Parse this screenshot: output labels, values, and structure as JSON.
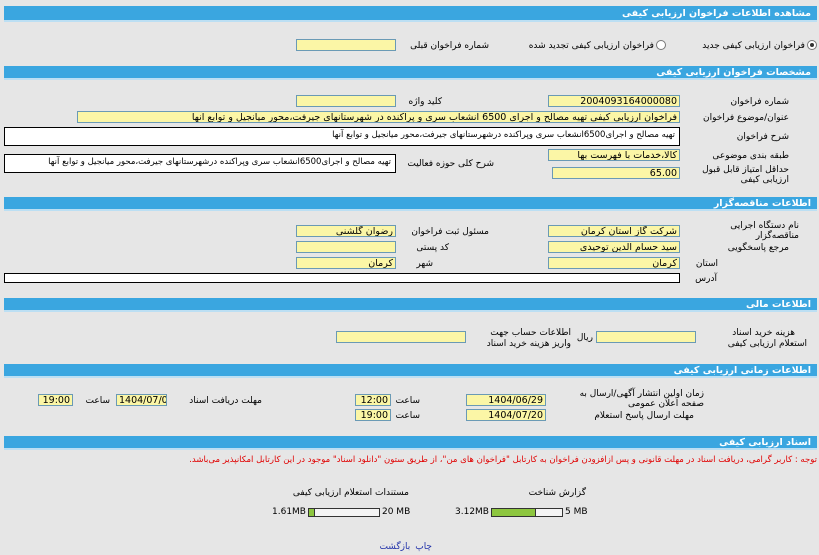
{
  "header": {
    "title": "مشاهده اطلاعات فراخوان ارزیابی کیفی"
  },
  "type": {
    "new_label": "فراخوان ارزیابی کیفی جدید",
    "renewed_label": "فراخوان ارزیابی کیفی تجدید شده",
    "selected": "new",
    "prev_number_label": "شماره فراخوان قبلی",
    "prev_number": ""
  },
  "spec": {
    "title": "مشخصات فراخوان ارزیابی کیفی",
    "number_label": "شماره فراخوان",
    "number": "2004093164000080",
    "keyword_label": "کلید واژه",
    "keyword": "",
    "subject_label": "عنوان/موضوع فراخوان",
    "subject": "فراخوان ارزیابی کیفی تهیه مصالح و اجرای 6500 انشعاب سری و پراکنده در شهرستانهای جیرفت،محور میانجیل و توابع آنها",
    "desc_label": "شرح فراخوان",
    "desc": "تهیه مصالح و اجرای6500انشعاب سری وپراکنده درشهرستانهای جیرفت،محور میانجیل و توابع آنها",
    "category_label": "طبقه بندی موضوعی",
    "category": "کالا،خدمات با فهرست بها",
    "scope_label": "شرح کلی حوزه فعالیت",
    "scope": "تهیه مصالح و اجرای6500انشعاب سری وپراکنده درشهرستانهای جیرفت،محور میانجیل و توابع آنها",
    "min_score_label": "حداقل امتیاز قابل قبول ارزیابی کیفی",
    "min_score": "65.00"
  },
  "org": {
    "title": "اطلاعات مناقصه‌گزار",
    "name_label": "نام دستگاه اجرایی مناقصه‌گزار",
    "name": "شرکت گاز استان کرمان",
    "registrar_label": "مسئول ثبت فراخوان",
    "registrar": "رضوان گلشنی",
    "contact_label": "مرجع پاسخگویی",
    "contact": "سید حسام الدین توحیدی",
    "postal_label": "کد پستی",
    "postal": "",
    "province_label": "استان",
    "province": "کرمان",
    "city_label": "شهر",
    "city": "کرمان",
    "address_label": "آدرس",
    "address": ""
  },
  "finance": {
    "title": "اطلاعات مالی",
    "fee_label_1": "هزینه خرید اسناد",
    "fee_label_2": "استعلام ارزیابی کیفی",
    "fee": "",
    "currency": "ریال",
    "account_label_1": "اطلاعات حساب جهت",
    "account_label_2": "واریز هزینه خرید اسناد",
    "account": ""
  },
  "timing": {
    "title": "اطلاعات زمانی ارزیابی کیفی",
    "publish_label": "زمان اولین انتشار آگهی/ارسال به صفحه اعلان عمومی",
    "publish_date": "1404/06/29",
    "time_label": "ساعت",
    "publish_time": "12:00",
    "doc_deadline_label": "مهلت دریافت اسناد",
    "doc_deadline_date": "1404/07/06",
    "doc_deadline_time": "19:00",
    "reply_label": "مهلت ارسال پاسخ استعلام",
    "reply_date": "1404/07/20",
    "reply_time": "19:00"
  },
  "docs": {
    "title": "اسناد ارزیابی کیفی",
    "notice": "توجه : کاربر گرامی، دریافت اسناد در مهلت قانونی و پس ازافزودن فراخوان به کارتابل \"فراخوان های من\"، از طریق ستون \"دانلود اسناد\" موجود در این کارتابل امکانپذیر می‌باشد.",
    "notice_color": "#e00000",
    "items": [
      {
        "label": "گزارش شناخت",
        "used": "3.12MB",
        "max": "5 MB",
        "fraction": 0.624
      },
      {
        "label": "مستندات استعلام ارزیابی کیفی",
        "used": "1.61MB",
        "max": "20 MB",
        "fraction": 0.0805
      }
    ]
  },
  "footer": {
    "print": "چاپ",
    "back": "بازگشت"
  }
}
